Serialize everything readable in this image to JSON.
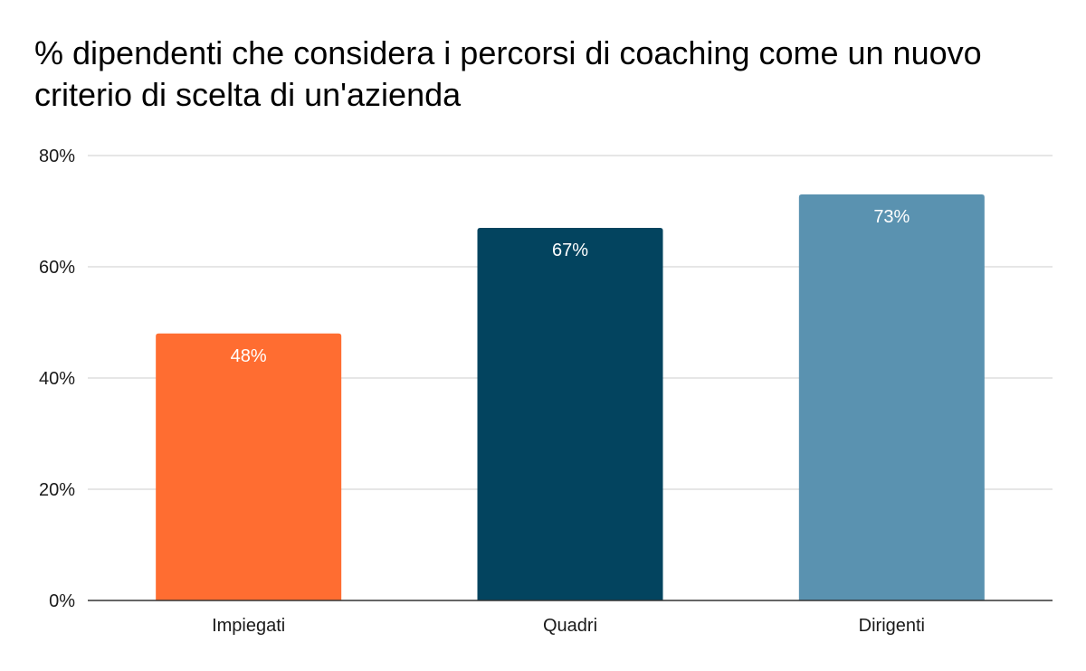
{
  "chart_data": {
    "type": "bar",
    "title": "% dipendenti che considera i percorsi di coaching come un nuovo criterio di scelta di un'azienda",
    "categories": [
      "Impiegati",
      "Quadri",
      "Dirigenti"
    ],
    "values": [
      48,
      67,
      73
    ],
    "data_labels": [
      "48%",
      "67%",
      "73%"
    ],
    "colors": [
      "#ff6d31",
      "#03445f",
      "#5a92b0"
    ],
    "ylim": [
      0,
      80
    ],
    "y_ticks": [
      0,
      20,
      40,
      60,
      80
    ],
    "y_tick_labels": [
      "0%",
      "20%",
      "40%",
      "60%",
      "80%"
    ],
    "xlabel": "",
    "ylabel": "",
    "grid": true,
    "legend": "none"
  }
}
